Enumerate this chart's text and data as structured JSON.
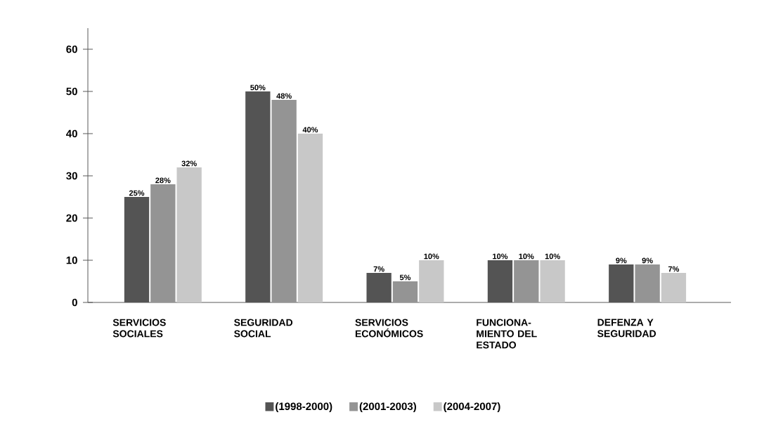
{
  "chart_data": {
    "type": "bar",
    "categories": [
      "SERVICIOS SOCIALES",
      "SEGURIDAD SOCIAL",
      "SERVICIOS ECONÓMICOS",
      "FUNCIONA-MIENTO DEL ESTADO",
      "DEFENZA Y SEGURIDAD"
    ],
    "series": [
      {
        "name": "(1998-2000)",
        "color": "#545454",
        "values": [
          25,
          50,
          7,
          10,
          9
        ],
        "value_labels": [
          "25%",
          "50%",
          "7%",
          "10%",
          "9%"
        ]
      },
      {
        "name": "(2001-2003)",
        "color": "#949494",
        "values": [
          28,
          48,
          5,
          10,
          9
        ],
        "value_labels": [
          "28%",
          "48%",
          "5%",
          "10%",
          "9%"
        ]
      },
      {
        "name": "(2004-2007)",
        "color": "#c8c8c8",
        "values": [
          32,
          40,
          10,
          10,
          7
        ],
        "value_labels": [
          "32%",
          "40%",
          "10%",
          "10%",
          "7%"
        ]
      }
    ],
    "ylim": [
      0,
      65
    ],
    "yticks": [
      0,
      10,
      20,
      30,
      40,
      50,
      60
    ],
    "grid": false,
    "legend": "bottom"
  }
}
